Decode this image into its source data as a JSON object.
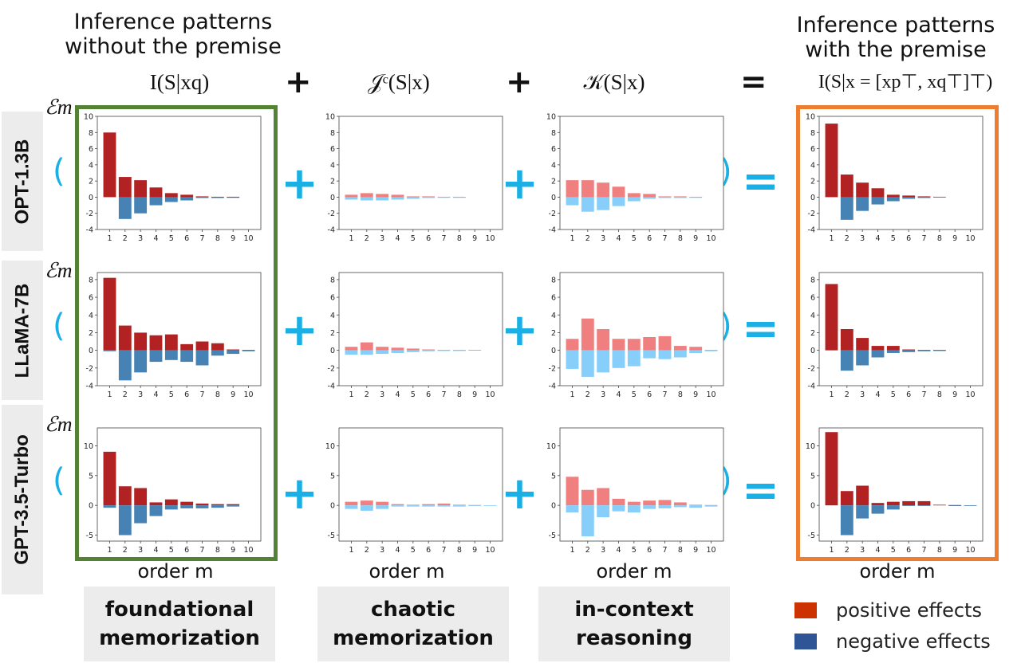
{
  "headers": {
    "left_title": "Inference patterns without the premise",
    "right_title": "Inference patterns with the premise"
  },
  "formulas": {
    "f1": "I(S|xq)",
    "f2": "𝒥ᶜ(S|x)",
    "f3": "𝒦(S|x)",
    "f4": "I(S|x = [xp⊤, xq⊤]⊤)"
  },
  "operators": {
    "plus": "+",
    "equals": "="
  },
  "row_labels": [
    "OPT-1.3B",
    "LLaMA-7B",
    "GPT-3.5-Turbo"
  ],
  "y_symbol": "ℰm",
  "xlabel": "order m",
  "categories": {
    "c1": [
      "foundational",
      "memorization"
    ],
    "c2": [
      "chaotic",
      "memorization"
    ],
    "c3": [
      "in-context",
      "reasoning"
    ]
  },
  "legend": {
    "positive": "positive effects",
    "negative": "negative effects"
  },
  "colors": {
    "dark_pos": "#b22222",
    "dark_neg": "#4682b4",
    "light_pos": "#f08080",
    "light_neg": "#87cefa",
    "legend_pos": "#cc3300",
    "legend_neg": "#2f5597",
    "green_box": "#548235",
    "orange_box": "#ed7d31",
    "accent_blue": "#1ab0e6"
  },
  "chart_data": [
    {
      "type": "bar",
      "model": "OPT-1.3B",
      "term": "foundational memorization",
      "style": "dark",
      "categories": [
        1,
        2,
        3,
        4,
        5,
        6,
        7,
        8,
        9,
        10
      ],
      "ylim": [
        -4,
        10
      ],
      "yticks": [
        -4,
        -2,
        0,
        2,
        4,
        6,
        8,
        10
      ],
      "series": [
        {
          "name": "positive effects",
          "values": [
            8.0,
            2.5,
            2.1,
            1.2,
            0.5,
            0.3,
            0.1,
            0.05,
            0.05,
            0
          ]
        },
        {
          "name": "negative effects",
          "values": [
            0,
            -2.7,
            -2.0,
            -1.0,
            -0.6,
            -0.4,
            -0.1,
            -0.1,
            -0.05,
            0
          ]
        }
      ]
    },
    {
      "type": "bar",
      "model": "OPT-1.3B",
      "term": "chaotic memorization",
      "style": "light",
      "categories": [
        1,
        2,
        3,
        4,
        5,
        6,
        7,
        8,
        9,
        10
      ],
      "ylim": [
        -4,
        10
      ],
      "yticks": [
        -4,
        -2,
        0,
        2,
        4,
        6,
        8,
        10
      ],
      "series": [
        {
          "name": "positive effects",
          "values": [
            0.3,
            0.5,
            0.4,
            0.3,
            0.1,
            0.1,
            0.05,
            0.05,
            0,
            0
          ]
        },
        {
          "name": "negative effects",
          "values": [
            -0.3,
            -0.4,
            -0.4,
            -0.3,
            -0.2,
            -0.1,
            -0.05,
            -0.05,
            0,
            0
          ]
        }
      ]
    },
    {
      "type": "bar",
      "model": "OPT-1.3B",
      "term": "in-context reasoning",
      "style": "light",
      "categories": [
        1,
        2,
        3,
        4,
        5,
        6,
        7,
        8,
        9,
        10
      ],
      "ylim": [
        -4,
        10
      ],
      "yticks": [
        -4,
        -2,
        0,
        2,
        4,
        6,
        8,
        10
      ],
      "series": [
        {
          "name": "positive effects",
          "values": [
            2.1,
            2.1,
            1.8,
            1.3,
            0.5,
            0.4,
            0.1,
            0.1,
            0.05,
            0
          ]
        },
        {
          "name": "negative effects",
          "values": [
            -1.0,
            -1.8,
            -1.6,
            -1.1,
            -0.5,
            -0.2,
            -0.1,
            -0.1,
            -0.05,
            0
          ]
        }
      ]
    },
    {
      "type": "bar",
      "model": "OPT-1.3B",
      "term": "with the premise",
      "style": "dark",
      "categories": [
        1,
        2,
        3,
        4,
        5,
        6,
        7,
        8,
        9,
        10
      ],
      "ylim": [
        -4,
        10
      ],
      "yticks": [
        -4,
        -2,
        0,
        2,
        4,
        6,
        8,
        10
      ],
      "series": [
        {
          "name": "positive effects",
          "values": [
            9.1,
            2.8,
            1.8,
            1.1,
            0.3,
            0.2,
            0.1,
            0.05,
            0,
            0
          ]
        },
        {
          "name": "negative effects",
          "values": [
            0,
            -2.8,
            -1.7,
            -0.9,
            -0.5,
            -0.2,
            -0.1,
            0,
            0,
            0
          ]
        }
      ]
    },
    {
      "type": "bar",
      "model": "LLaMA-7B",
      "term": "foundational memorization",
      "style": "dark",
      "categories": [
        1,
        2,
        3,
        4,
        5,
        6,
        7,
        8,
        9,
        10
      ],
      "ylim": [
        -4,
        8.8
      ],
      "yticks": [
        -4,
        -2,
        0,
        2,
        4,
        6,
        8
      ],
      "series": [
        {
          "name": "positive effects",
          "values": [
            8.2,
            2.8,
            2.0,
            1.7,
            1.8,
            0.7,
            1.0,
            0.8,
            0.1,
            0.05
          ]
        },
        {
          "name": "negative effects",
          "values": [
            -0.1,
            -3.4,
            -2.5,
            -1.3,
            -1.1,
            -1.3,
            -1.7,
            -0.6,
            -0.4,
            -0.1
          ]
        }
      ]
    },
    {
      "type": "bar",
      "model": "LLaMA-7B",
      "term": "chaotic memorization",
      "style": "light",
      "categories": [
        1,
        2,
        3,
        4,
        5,
        6,
        7,
        8,
        9,
        10
      ],
      "ylim": [
        -4,
        8.8
      ],
      "yticks": [
        -4,
        -2,
        0,
        2,
        4,
        6,
        8
      ],
      "series": [
        {
          "name": "positive effects",
          "values": [
            0.4,
            0.9,
            0.4,
            0.3,
            0.2,
            0.1,
            0.05,
            0.05,
            0.05,
            0
          ]
        },
        {
          "name": "negative effects",
          "values": [
            -0.5,
            -0.5,
            -0.4,
            -0.3,
            -0.2,
            -0.1,
            -0.05,
            -0.05,
            0,
            0
          ]
        }
      ]
    },
    {
      "type": "bar",
      "model": "LLaMA-7B",
      "term": "in-context reasoning",
      "style": "light",
      "categories": [
        1,
        2,
        3,
        4,
        5,
        6,
        7,
        8,
        9,
        10
      ],
      "ylim": [
        -4,
        8.8
      ],
      "yticks": [
        -4,
        -2,
        0,
        2,
        4,
        6,
        8
      ],
      "series": [
        {
          "name": "positive effects",
          "values": [
            1.3,
            3.6,
            2.4,
            1.3,
            1.3,
            1.5,
            1.6,
            0.5,
            0.4,
            0.05
          ]
        },
        {
          "name": "negative effects",
          "values": [
            -2.1,
            -3.0,
            -2.5,
            -2.0,
            -1.8,
            -0.9,
            -1.0,
            -0.8,
            -0.3,
            -0.1
          ]
        }
      ]
    },
    {
      "type": "bar",
      "model": "LLaMA-7B",
      "term": "with the premise",
      "style": "dark",
      "categories": [
        1,
        2,
        3,
        4,
        5,
        6,
        7,
        8,
        9,
        10
      ],
      "ylim": [
        -4,
        8.8
      ],
      "yticks": [
        -4,
        -2,
        0,
        2,
        4,
        6,
        8
      ],
      "series": [
        {
          "name": "positive effects",
          "values": [
            7.5,
            2.4,
            1.4,
            0.5,
            0.5,
            0.1,
            0.05,
            0.05,
            0,
            0
          ]
        },
        {
          "name": "negative effects",
          "values": [
            0,
            -2.3,
            -1.7,
            -0.8,
            -0.3,
            -0.2,
            -0.1,
            -0.05,
            0,
            0
          ]
        }
      ]
    },
    {
      "type": "bar",
      "model": "GPT-3.5-Turbo",
      "term": "foundational memorization",
      "style": "dark",
      "categories": [
        1,
        2,
        3,
        4,
        5,
        6,
        7,
        8,
        9,
        10
      ],
      "ylim": [
        -6,
        13
      ],
      "yticks": [
        -5,
        0,
        5,
        10
      ],
      "series": [
        {
          "name": "positive effects",
          "values": [
            9.0,
            3.2,
            2.9,
            0.5,
            1.0,
            0.6,
            0.3,
            0.2,
            0.2,
            0
          ]
        },
        {
          "name": "negative effects",
          "values": [
            -0.4,
            -5.0,
            -3.0,
            -1.8,
            -0.7,
            -0.5,
            -0.5,
            -0.4,
            -0.2,
            0
          ]
        }
      ]
    },
    {
      "type": "bar",
      "model": "GPT-3.5-Turbo",
      "term": "chaotic memorization",
      "style": "light",
      "categories": [
        1,
        2,
        3,
        4,
        5,
        6,
        7,
        8,
        9,
        10
      ],
      "ylim": [
        -6,
        13
      ],
      "yticks": [
        -5,
        0,
        5,
        10
      ],
      "series": [
        {
          "name": "positive effects",
          "values": [
            0.6,
            0.8,
            0.6,
            0.2,
            0.1,
            0.2,
            0.3,
            0.1,
            0.05,
            0
          ]
        },
        {
          "name": "negative effects",
          "values": [
            -0.6,
            -0.9,
            -0.6,
            -0.2,
            -0.2,
            -0.2,
            -0.2,
            -0.2,
            -0.1,
            -0.1
          ]
        }
      ]
    },
    {
      "type": "bar",
      "model": "GPT-3.5-Turbo",
      "term": "in-context reasoning",
      "style": "light",
      "categories": [
        1,
        2,
        3,
        4,
        5,
        6,
        7,
        8,
        9,
        10
      ],
      "ylim": [
        -6,
        13
      ],
      "yticks": [
        -5,
        0,
        5,
        10
      ],
      "series": [
        {
          "name": "positive effects",
          "values": [
            4.8,
            2.6,
            2.9,
            1.1,
            0.6,
            0.8,
            0.9,
            0.5,
            0.1,
            0.05
          ]
        },
        {
          "name": "negative effects",
          "values": [
            -1.2,
            -5.2,
            -2.0,
            -1.0,
            -1.2,
            -0.6,
            -0.5,
            -0.3,
            -0.4,
            -0.2
          ]
        }
      ]
    },
    {
      "type": "bar",
      "model": "GPT-3.5-Turbo",
      "term": "with the premise",
      "style": "dark",
      "categories": [
        1,
        2,
        3,
        4,
        5,
        6,
        7,
        8,
        9,
        10
      ],
      "ylim": [
        -6,
        13
      ],
      "yticks": [
        -5,
        0,
        5,
        10
      ],
      "series": [
        {
          "name": "positive effects",
          "values": [
            12.3,
            2.4,
            3.3,
            0.4,
            0.6,
            0.7,
            0.7,
            0.1,
            0.05,
            0
          ]
        },
        {
          "name": "negative effects",
          "values": [
            0,
            -5.0,
            -2.2,
            -1.4,
            -0.7,
            -0.1,
            -0.1,
            0,
            -0.05,
            -0.05
          ]
        }
      ]
    }
  ]
}
